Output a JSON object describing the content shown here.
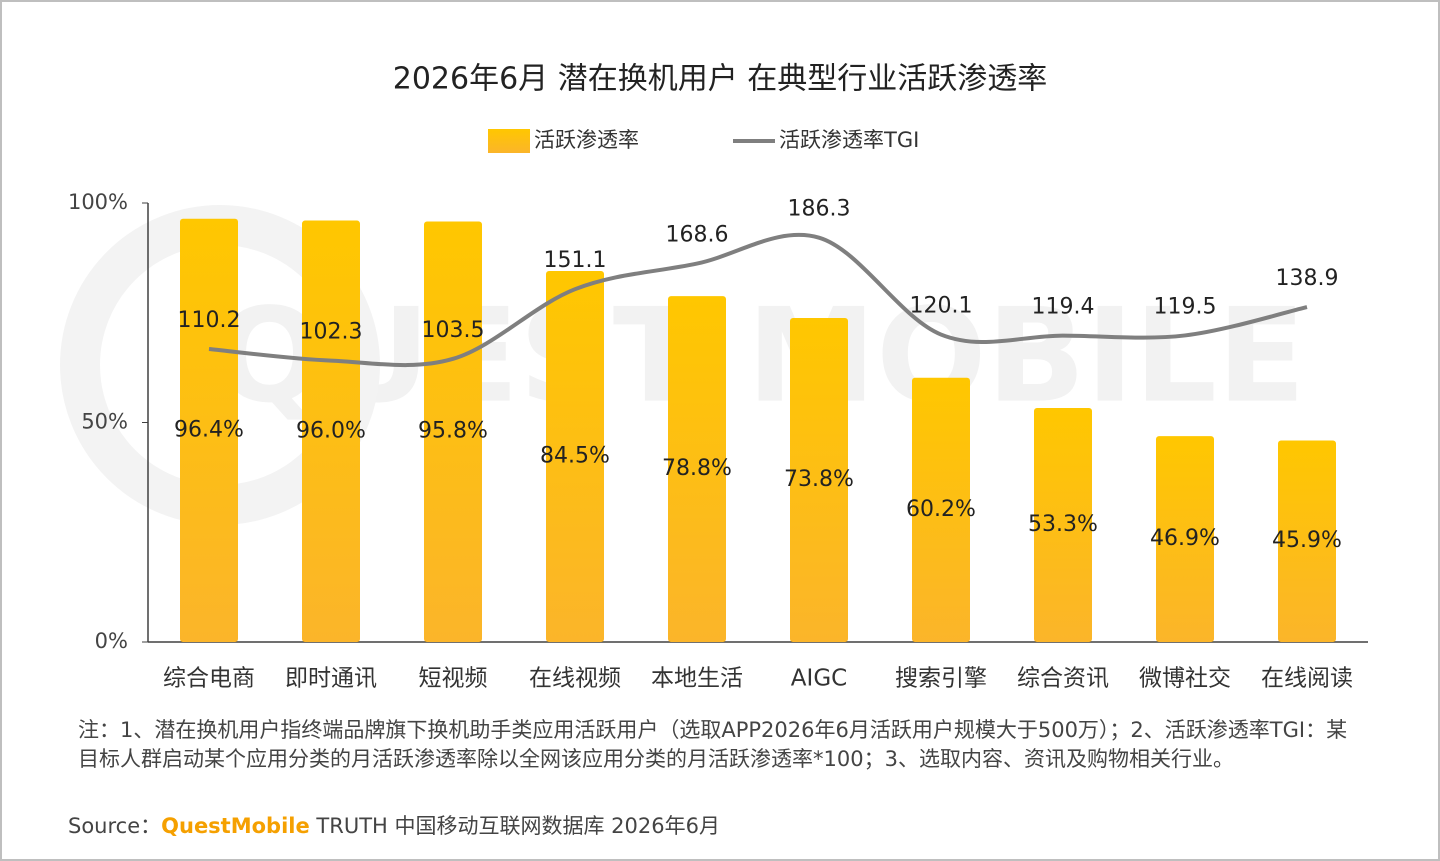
{
  "chart_data": {
    "type": "bar",
    "title": "2026年6月 潜在换机用户 在典型行业活跃渗透率",
    "categories": [
      "综合电商",
      "即时通讯",
      "短视频",
      "在线视频",
      "本地生活",
      "AIGC",
      "搜索引擎",
      "综合资讯",
      "微博社交",
      "在线阅读"
    ],
    "series": [
      {
        "name": "活跃渗透率",
        "type": "bar",
        "color": "#ffc000",
        "values": [
          96.4,
          96.0,
          95.8,
          84.5,
          78.8,
          73.8,
          60.2,
          53.3,
          46.9,
          45.9
        ],
        "value_labels": [
          "96.4%",
          "96.0%",
          "95.8%",
          "84.5%",
          "78.8%",
          "73.8%",
          "60.2%",
          "53.3%",
          "46.9%",
          "45.9%"
        ]
      },
      {
        "name": "活跃渗透率TGI",
        "type": "line",
        "axis": "y2",
        "color": "#7f7f7f",
        "values": [
          110.2,
          102.3,
          103.5,
          151.1,
          168.6,
          186.3,
          120.1,
          119.4,
          119.5,
          138.9
        ]
      }
    ],
    "ylim": [
      0,
      100
    ],
    "yticks": [
      {
        "value": 0,
        "label": "0%"
      },
      {
        "value": 50,
        "label": "50%"
      },
      {
        "value": 100,
        "label": "100%"
      }
    ],
    "y2lim": [
      -90,
      210
    ],
    "legend": "top"
  },
  "watermark": "QUEST MOBILE",
  "note": "注：1、潜在换机用户指终端品牌旗下换机助手类应用活跃用户（选取APP2026年6月活跃用户规模大于500万）；2、活跃渗透率TGI：某目标人群启动某个应用分类的月活跃渗透率除以全网该应用分类的月活跃渗透率*100；3、选取内容、资讯及购物相关行业。",
  "source": {
    "label": "Source：",
    "brand": "QuestMobile",
    "text": "TRUTH 中国移动互联网数据库 2026年6月"
  }
}
